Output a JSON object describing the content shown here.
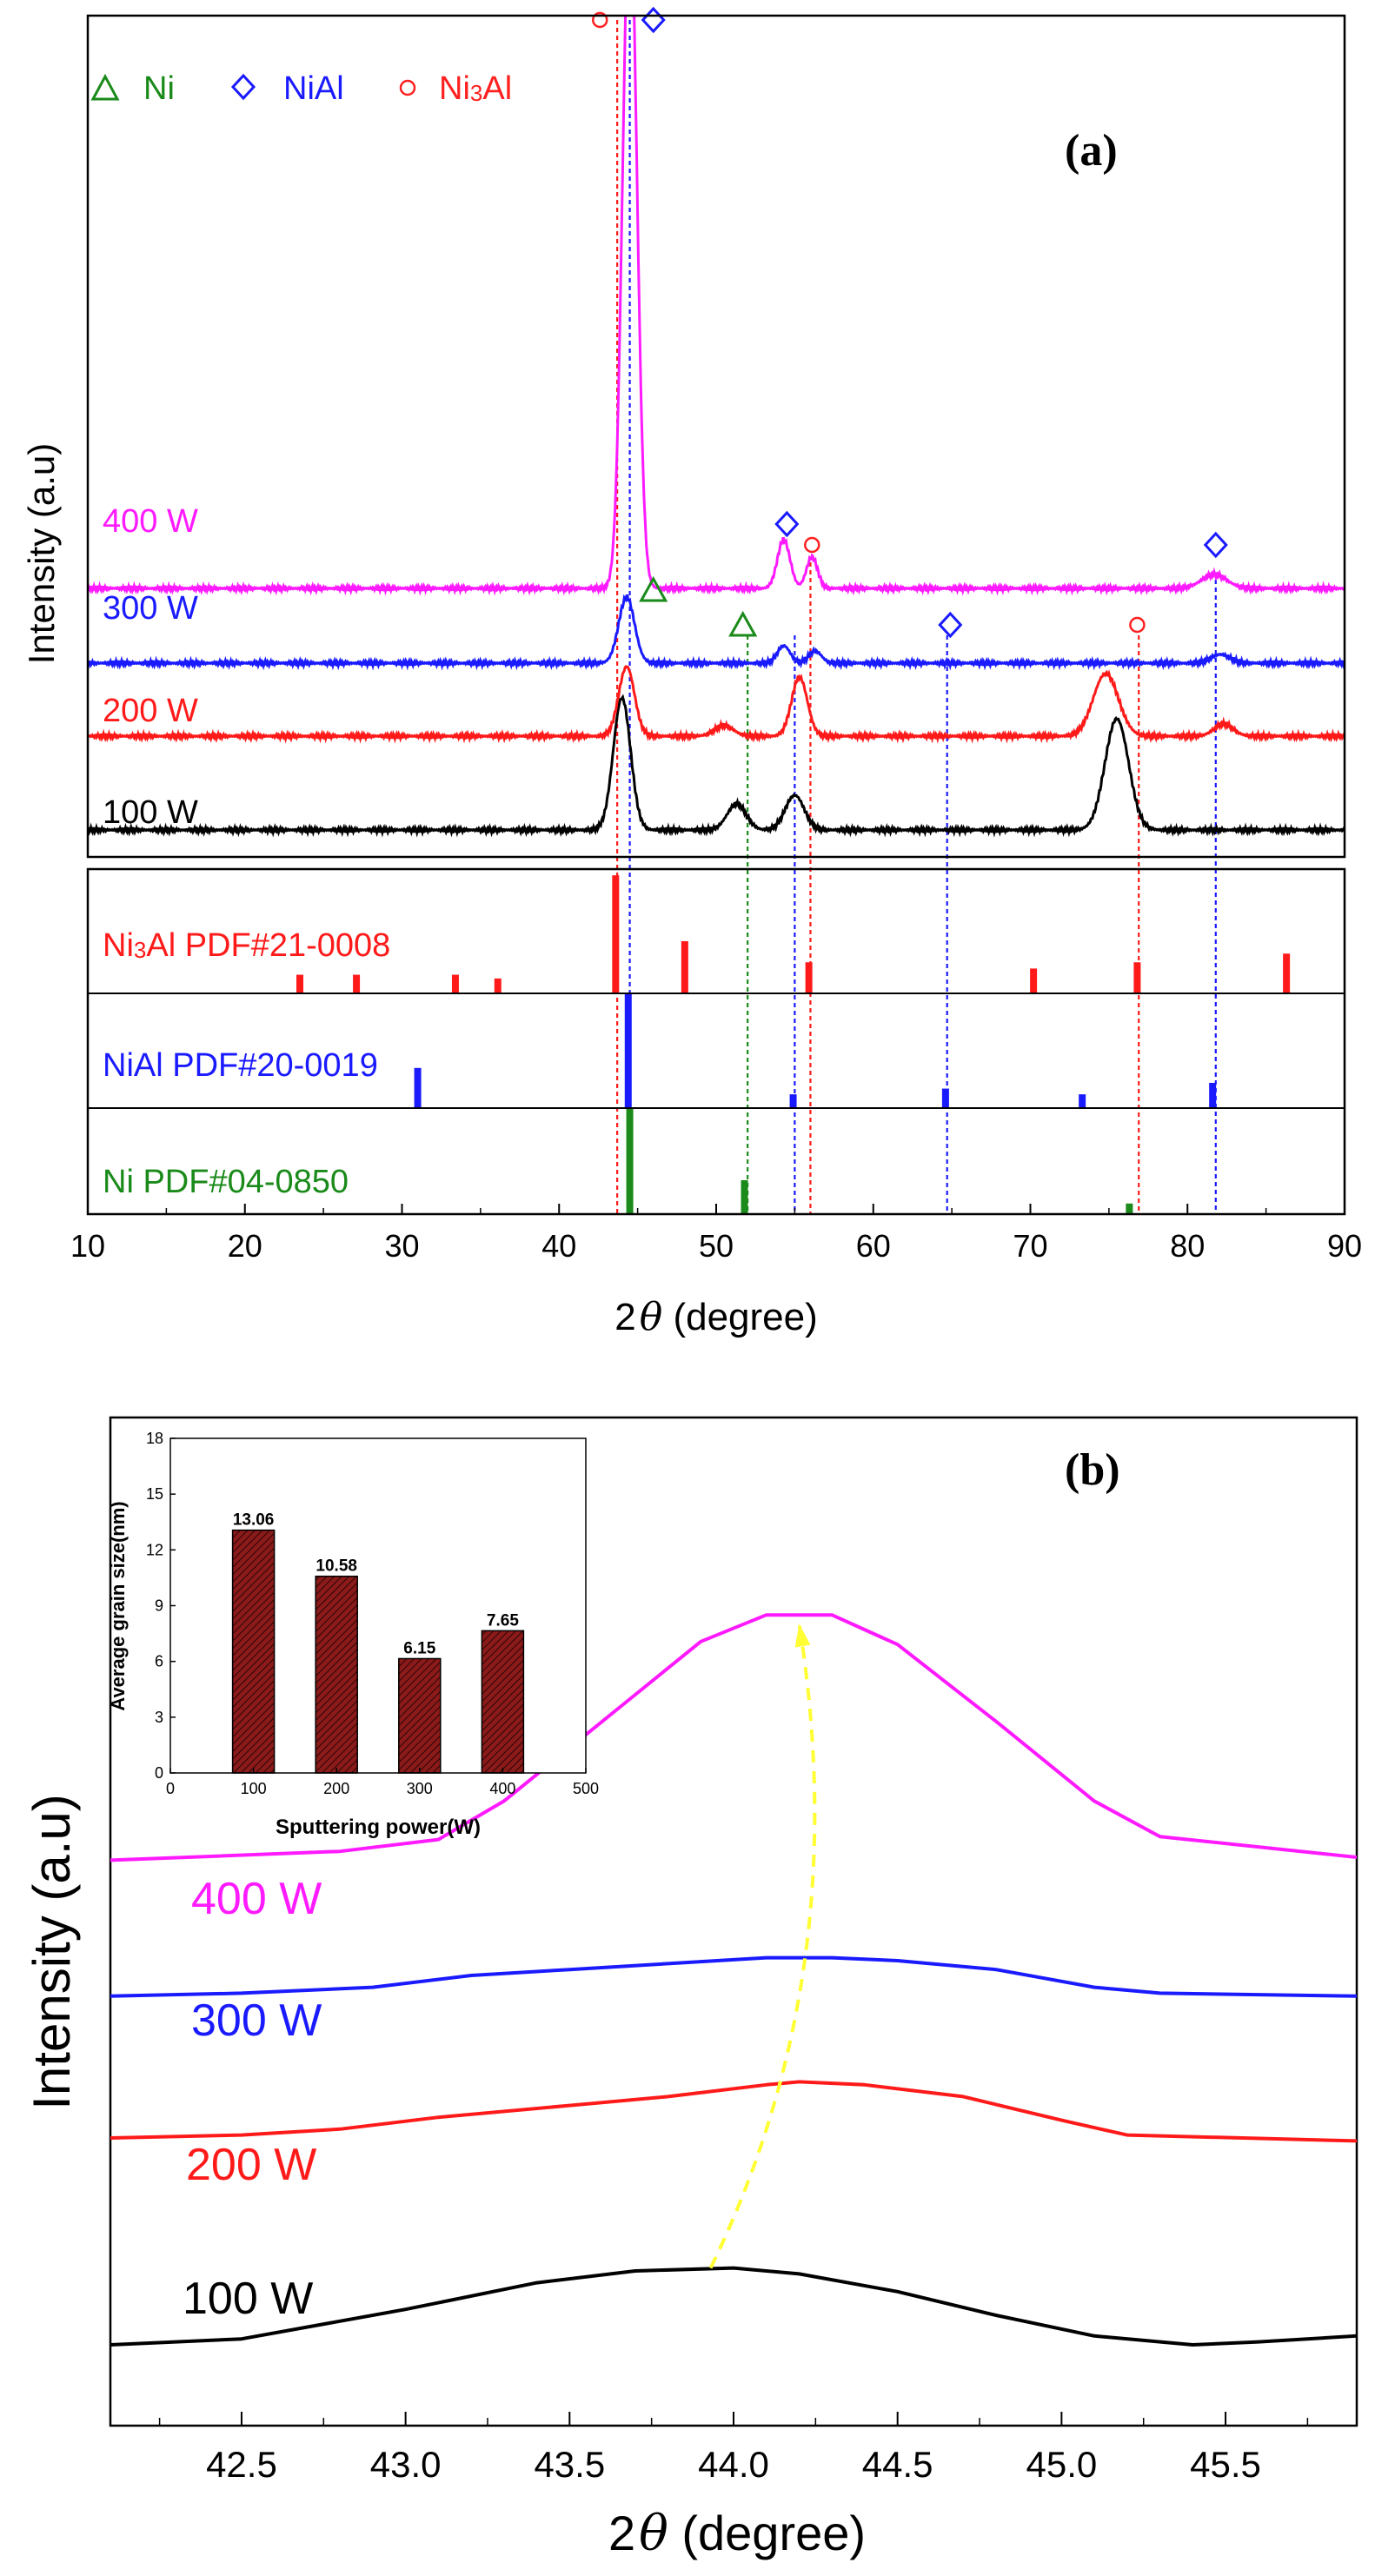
{
  "chart_data": [
    {
      "id": "a",
      "type": "line",
      "panel_label": "(a)",
      "panel_label_letter": "a",
      "xlabel_prefix": "2",
      "xlabel_symbol": "θ",
      "xlabel_suffix": " (degree)",
      "ylabel": "Intensity (a.u)",
      "xlim": [
        10,
        90
      ],
      "xticks": [
        10,
        20,
        30,
        40,
        50,
        60,
        70,
        80,
        90
      ],
      "legend": [
        {
          "symbol": "triangle",
          "label": "Ni",
          "color": "#1a8a1a"
        },
        {
          "symbol": "diamond",
          "label": "NiAl",
          "color": "#1a1aff"
        },
        {
          "symbol": "circle",
          "label": "Ni3Al",
          "label_main": "Ni",
          "label_sub": "3",
          "label_tail": "Al",
          "color": "#ff2020"
        }
      ],
      "series": [
        {
          "name": "100 W",
          "color": "#000000",
          "baseline": 0.0,
          "peaks": [
            [
              44.0,
              3.8,
              0.55
            ],
            [
              51.3,
              0.75,
              0.6
            ],
            [
              55.0,
              1.0,
              0.6
            ],
            [
              75.5,
              3.2,
              0.75
            ]
          ]
        },
        {
          "name": "200 W",
          "color": "#ff1a1a",
          "baseline": 2.7,
          "peaks": [
            [
              44.3,
              2.0,
              0.5
            ],
            [
              50.5,
              0.3,
              0.6
            ],
            [
              55.3,
              1.7,
              0.5
            ],
            [
              74.8,
              1.8,
              0.8
            ],
            [
              82.3,
              0.35,
              0.6
            ]
          ]
        },
        {
          "name": "300 W",
          "color": "#1a1aff",
          "baseline": 4.8,
          "peaks": [
            [
              44.3,
              1.9,
              0.5
            ],
            [
              54.3,
              0.5,
              0.4
            ],
            [
              56.3,
              0.35,
              0.4
            ],
            [
              82.1,
              0.25,
              0.6
            ]
          ]
        },
        {
          "name": "400 W",
          "color": "#ff1aff",
          "baseline": 6.95,
          "peaks": [
            [
              44.5,
              20.0,
              0.45
            ],
            [
              54.3,
              1.4,
              0.4
            ],
            [
              56.1,
              0.9,
              0.35
            ],
            [
              81.7,
              0.4,
              0.8
            ]
          ]
        }
      ],
      "references": [
        {
          "label": "Ni3Al PDF#21-0008",
          "label_main": "Ni",
          "label_sub": "3",
          "label_tail": "Al PDF#21-0008",
          "color": "#ff1a1a",
          "lines": [
            [
              23.5,
              0.15
            ],
            [
              27.1,
              0.15
            ],
            [
              33.4,
              0.15
            ],
            [
              36.1,
              0.12
            ],
            [
              43.6,
              0.95
            ],
            [
              48.0,
              0.42
            ],
            [
              55.9,
              0.25
            ],
            [
              70.2,
              0.2
            ],
            [
              76.8,
              0.25
            ],
            [
              86.3,
              0.32
            ]
          ]
        },
        {
          "label": "NiAl PDF#20-0019",
          "label_main": "NiAl PDF#20-0019",
          "color": "#1a1aff",
          "lines": [
            [
              31.0,
              0.35
            ],
            [
              44.4,
              1.0
            ],
            [
              54.9,
              0.12
            ],
            [
              64.6,
              0.17
            ],
            [
              73.3,
              0.12
            ],
            [
              81.6,
              0.22
            ]
          ]
        },
        {
          "label": "Ni PDF#04-0850",
          "label_main": "Ni PDF#04-0850",
          "color": "#1a8a1a",
          "lines": [
            [
              44.5,
              1.0
            ],
            [
              51.8,
              0.32
            ],
            [
              76.3,
              0.1
            ]
          ]
        }
      ],
      "guide_lines": [
        {
          "x": 43.7,
          "color": "#ff1a1a",
          "from_y": 23.3
        },
        {
          "x": 44.5,
          "color": "#1a1aff",
          "from_y": 23.3
        },
        {
          "x": 52.0,
          "color": "#1a8a1a",
          "from_y": 5.6
        },
        {
          "x": 55.0,
          "color": "#1a1aff",
          "from_y": 5.6
        },
        {
          "x": 56.0,
          "color": "#ff1a1a",
          "from_y": 7.7
        },
        {
          "x": 64.7,
          "color": "#1a1aff",
          "from_y": 5.6
        },
        {
          "x": 76.9,
          "color": "#ff1a1a",
          "from_y": 5.6
        },
        {
          "x": 81.8,
          "color": "#1a1aff",
          "from_y": 7.2
        }
      ],
      "markers": [
        {
          "symbol": "circle",
          "x": 42.6,
          "y": 23.3,
          "color": "#ff2020"
        },
        {
          "symbol": "diamond",
          "x": 46.0,
          "y": 23.3,
          "color": "#1a1aff"
        },
        {
          "symbol": "diamond",
          "x": 54.5,
          "y": 8.8,
          "color": "#1a1aff"
        },
        {
          "symbol": "circle",
          "x": 56.1,
          "y": 8.2,
          "color": "#ff2020"
        },
        {
          "symbol": "diamond",
          "x": 81.8,
          "y": 8.2,
          "color": "#1a1aff"
        },
        {
          "symbol": "triangle",
          "x": 46.0,
          "y": 6.9,
          "color": "#1a8a1a"
        },
        {
          "symbol": "triangle",
          "x": 51.7,
          "y": 5.9,
          "color": "#1a8a1a"
        },
        {
          "symbol": "diamond",
          "x": 64.9,
          "y": 5.9,
          "color": "#1a1aff"
        },
        {
          "symbol": "circle",
          "x": 76.8,
          "y": 5.9,
          "color": "#ff2020"
        }
      ]
    },
    {
      "id": "b",
      "type": "line",
      "panel_label": "(b)",
      "panel_label_letter": "b",
      "xlabel_prefix": "2",
      "xlabel_symbol": "θ",
      "xlabel_suffix": " (degree)",
      "ylabel": "Intensity (a.u)",
      "xlim": [
        42.1,
        45.9
      ],
      "xticks": [
        42.5,
        43.0,
        43.5,
        44.0,
        44.5,
        45.0,
        45.5
      ],
      "xtick_labels": [
        "42.5",
        "43.0",
        "43.5",
        "44.0",
        "44.5",
        "45.0",
        "45.5"
      ],
      "series": [
        {
          "name": "100 W",
          "color": "#000000",
          "x": [
            42.1,
            42.5,
            43.0,
            43.4,
            43.7,
            44.0,
            44.2,
            44.5,
            44.8,
            45.1,
            45.4,
            45.6,
            45.9
          ],
          "y": [
            0.0,
            0.1,
            0.6,
            1.05,
            1.25,
            1.3,
            1.2,
            0.9,
            0.5,
            0.15,
            0.0,
            0.05,
            0.15
          ]
        },
        {
          "name": "200 W",
          "color": "#ff1a1a",
          "x": [
            42.1,
            42.5,
            42.8,
            43.1,
            43.5,
            43.8,
            44.1,
            44.2,
            44.4,
            44.7,
            45.0,
            45.2,
            45.9
          ],
          "y": [
            3.5,
            3.55,
            3.65,
            3.85,
            4.05,
            4.2,
            4.4,
            4.45,
            4.4,
            4.2,
            3.8,
            3.55,
            3.45
          ]
        },
        {
          "name": "300 W",
          "color": "#1a1aff",
          "x": [
            42.1,
            42.5,
            42.9,
            43.2,
            43.5,
            43.8,
            44.1,
            44.3,
            44.5,
            44.8,
            45.1,
            45.3,
            45.9
          ],
          "y": [
            5.9,
            5.95,
            6.05,
            6.25,
            6.35,
            6.45,
            6.55,
            6.55,
            6.5,
            6.35,
            6.05,
            5.95,
            5.9
          ]
        },
        {
          "name": "400 W",
          "color": "#ff1aff",
          "x": [
            42.1,
            42.8,
            43.1,
            43.3,
            43.5,
            43.7,
            43.9,
            44.1,
            44.3,
            44.5,
            44.8,
            45.1,
            45.3,
            45.9
          ],
          "y": [
            8.2,
            8.35,
            8.55,
            9.2,
            10.1,
            11.0,
            11.9,
            12.35,
            12.35,
            11.85,
            10.55,
            9.2,
            8.6,
            8.25
          ]
        }
      ],
      "arrow": {
        "color": "#ffff33",
        "from": [
          43.93,
          1.3
        ],
        "control": [
          44.37,
          6.3
        ],
        "to": [
          44.2,
          12.2
        ]
      },
      "inset": {
        "type": "bar",
        "categories": [
          100,
          200,
          300,
          400
        ],
        "values": [
          13.06,
          10.58,
          6.15,
          7.65
        ],
        "value_labels": [
          "13.06",
          "10.58",
          "6.15",
          "7.65"
        ],
        "xlabel": "Sputtering power(W)",
        "ylabel": "Average grain size(nm)",
        "xlim": [
          0,
          500
        ],
        "ylim": [
          0,
          18
        ],
        "xticks": [
          0,
          100,
          200,
          300,
          400,
          500
        ],
        "yticks": [
          0,
          3,
          6,
          9,
          12,
          15,
          18
        ],
        "bar_color": "#8b1a1a"
      }
    }
  ]
}
